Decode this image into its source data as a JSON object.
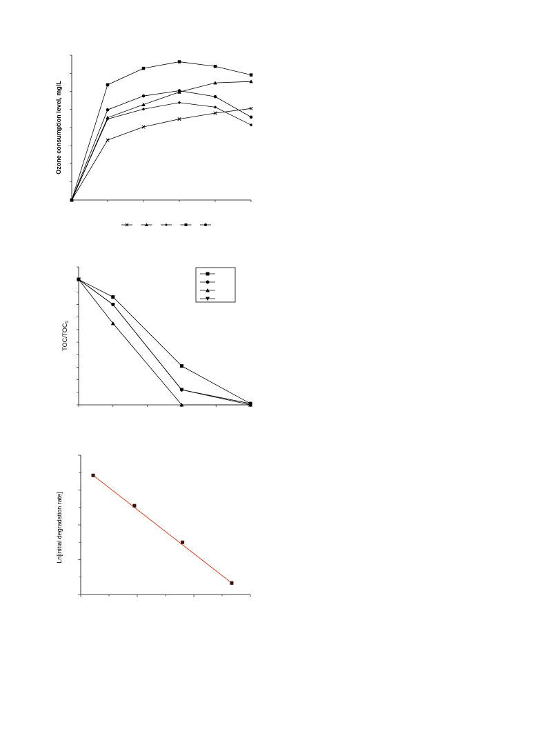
{
  "chart_data": [
    {
      "type": "line",
      "ylabel": "Ozone consumption level, mg/L",
      "xlabel": "",
      "x": [
        0,
        1,
        2,
        3,
        4,
        5
      ],
      "xlim": [
        0,
        5
      ],
      "ylim": [
        0,
        22
      ],
      "y_tick_count": 9,
      "legend_position": "bottom-center",
      "series": [
        {
          "marker": "square",
          "values": [
            0,
            17.5,
            20,
            21,
            20.3,
            19
          ]
        },
        {
          "marker": "triangle",
          "values": [
            0,
            12.5,
            14.5,
            16.4,
            17.8,
            18
          ]
        },
        {
          "marker": "circle",
          "values": [
            0,
            13.7,
            15.8,
            16.6,
            15.7,
            12.6
          ]
        },
        {
          "marker": "diamond",
          "values": [
            0,
            12.3,
            13.8,
            14.8,
            14.1,
            11.4
          ]
        },
        {
          "marker": "cross",
          "values": [
            0,
            9.1,
            11.1,
            12.3,
            13.2,
            13.9
          ]
        }
      ],
      "legend_markers": [
        "cross",
        "triangle",
        "diamond",
        "square",
        "circle"
      ]
    },
    {
      "type": "line",
      "ylabel": "TOC/TOC",
      "ylabel_sub": "0",
      "xlabel": "",
      "x": [
        0,
        1,
        2,
        3,
        4,
        5
      ],
      "xlim": [
        0,
        5
      ],
      "ylim": [
        0,
        1.1
      ],
      "legend_position": "top-right",
      "series": [
        {
          "marker": "square",
          "values": [
            1,
            0.86,
            null,
            0.31,
            null,
            0.01
          ]
        },
        {
          "marker": "circle",
          "values": [
            1,
            0.8,
            null,
            0.12,
            null,
            0.01
          ]
        },
        {
          "marker": "triangle",
          "values": [
            1,
            0.65,
            null,
            0.0,
            null,
            0.0
          ]
        },
        {
          "marker": "down-triangle",
          "values": [
            1,
            0.8,
            null,
            0.12,
            null,
            0.0
          ]
        }
      ]
    },
    {
      "type": "scatter",
      "ylabel": "Ln[initial degradation rate]",
      "xlabel": "",
      "xlim": [
        0,
        3
      ],
      "ylim": [
        0,
        4
      ],
      "fit_line": true,
      "fit_color": "#e2401f",
      "marker_color": "#3a1010",
      "points": [
        {
          "x": 0.22,
          "y": 3.42
        },
        {
          "x": 0.95,
          "y": 2.55
        },
        {
          "x": 1.8,
          "y": 1.5
        },
        {
          "x": 2.67,
          "y": 0.33
        }
      ]
    }
  ]
}
